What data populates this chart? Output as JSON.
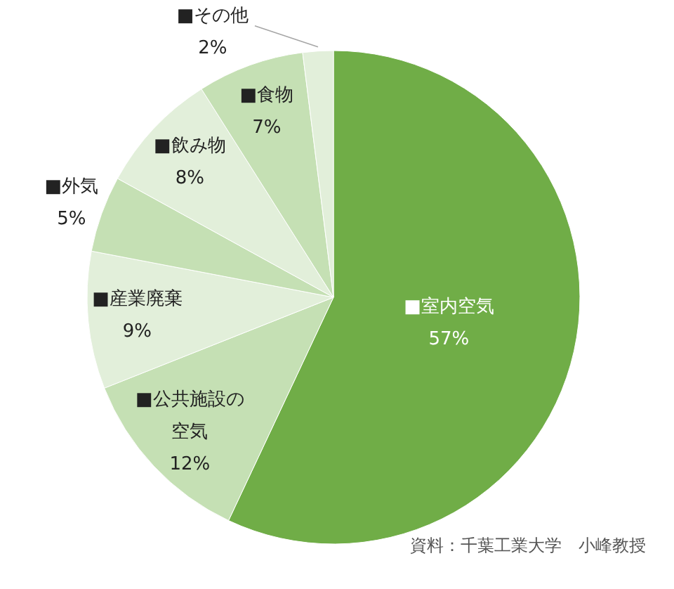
{
  "chart_data": {
    "type": "pie",
    "categories": [
      "■室内空気",
      "■公共施設の空気",
      "■産業廃棄",
      "■外気",
      "■飲み物",
      "■食物",
      "■その他"
    ],
    "values": [
      57,
      12,
      9,
      5,
      8,
      7,
      2
    ],
    "value_labels": [
      "57%",
      "12%",
      "9%",
      "5%",
      "8%",
      "7%",
      "2%"
    ],
    "colors": [
      "#70ad47",
      "#c5e0b4",
      "#e2efda",
      "#c5e0b4",
      "#e2efda",
      "#c5e0b4",
      "#e2efda"
    ],
    "annotations": [
      "資料：千葉工業大学　小峰教授"
    ]
  }
}
